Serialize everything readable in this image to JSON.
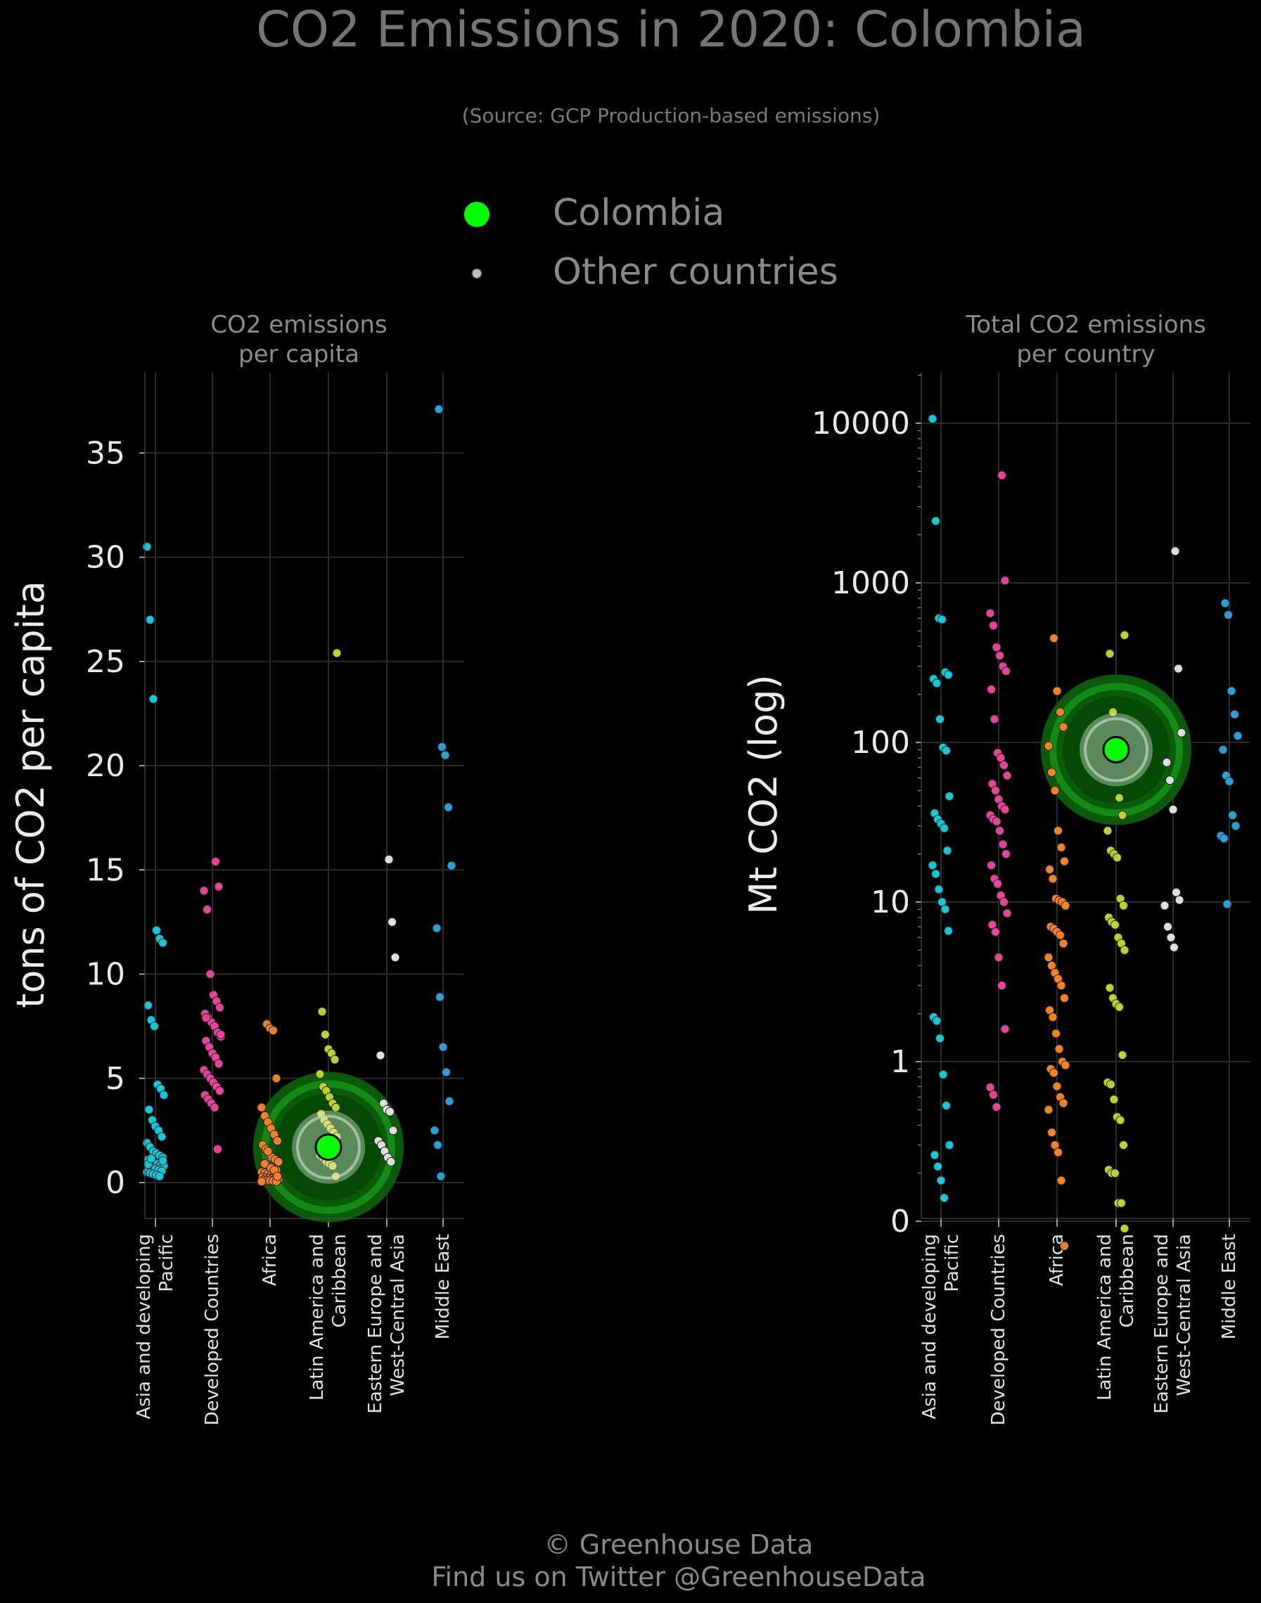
{
  "title": "CO2 Emissions in 2020: Colombia",
  "subtitle": "(Source: GCP Production-based emissions)",
  "legend": [
    {
      "label": "Colombia",
      "color": "#00ff00"
    },
    {
      "label": "Other countries",
      "color": "#bfbfbf"
    }
  ],
  "footer": {
    "line1": "© Greenhouse Data",
    "line2": "Find us on Twitter @GreenhouseData"
  },
  "colors": {
    "highlight": "#00ff00",
    "categories": [
      "#14c8d7",
      "#e8459a",
      "#f58223",
      "#bcd42a",
      "#dedede",
      "#2b9fd8"
    ]
  },
  "chart_data": [
    {
      "type": "scatter",
      "title": "CO2 emissions\nper capita",
      "ylabel": "tons of CO2 per capita",
      "scale": "linear",
      "ylim": [
        -1.6,
        38.6
      ],
      "yticks": [
        0,
        5,
        10,
        15,
        20,
        25,
        30,
        35
      ],
      "categories": [
        "Asia and developing\nPacific",
        "Developed Countries",
        "Africa",
        "Latin America and\nCaribbean",
        "Eastern Europe and\nWest-Central Asia",
        "Middle East"
      ],
      "highlight": {
        "label": "Colombia",
        "category": "Latin America and\nCaribbean",
        "value": 1.7
      },
      "series": [
        {
          "category": "Asia and developing\nPacific",
          "values": [
            30.5,
            27.0,
            23.2,
            12.1,
            11.7,
            11.5,
            8.5,
            7.8,
            7.5,
            4.7,
            4.5,
            4.2,
            3.5,
            3.0,
            2.7,
            2.5,
            2.2,
            1.9,
            1.7,
            1.5,
            1.4,
            1.3,
            1.2,
            1.1,
            1.0,
            0.95,
            0.9,
            0.85,
            0.8,
            0.75,
            0.7,
            0.65,
            0.6,
            0.55,
            0.5,
            0.45,
            0.4,
            0.35,
            0.3,
            1.05,
            0.88,
            1.15
          ]
        },
        {
          "category": "Developed Countries",
          "values": [
            15.4,
            14.2,
            14.0,
            13.1,
            10.0,
            9.0,
            8.7,
            8.4,
            8.1,
            7.9,
            7.7,
            7.5,
            7.2,
            7.0,
            6.8,
            6.5,
            6.2,
            6.0,
            5.7,
            5.4,
            5.2,
            5.0,
            4.8,
            4.6,
            4.4,
            4.2,
            4.0,
            3.8,
            3.6,
            1.6,
            7.1,
            7.9
          ]
        },
        {
          "category": "Africa",
          "values": [
            7.6,
            7.4,
            7.3,
            5.0,
            3.6,
            3.2,
            2.9,
            2.6,
            2.3,
            2.0,
            1.8,
            1.6,
            1.4,
            1.2,
            1.1,
            1.0,
            0.9,
            0.8,
            0.7,
            0.65,
            0.6,
            0.5,
            0.45,
            0.4,
            0.35,
            0.3,
            0.28,
            0.25,
            0.22,
            0.2,
            0.18,
            0.16,
            0.14,
            0.12,
            0.1,
            0.1,
            0.08,
            0.06,
            0.05,
            0.9,
            1.5,
            0.7,
            0.6,
            0.3
          ]
        },
        {
          "category": "Latin America and\nCaribbean",
          "values": [
            25.4,
            8.2,
            7.1,
            6.4,
            6.2,
            5.9,
            5.2,
            4.6,
            4.4,
            4.1,
            3.8,
            3.6,
            3.3,
            3.0,
            2.8,
            2.6,
            2.4,
            2.2,
            2.0,
            1.9,
            1.8,
            1.6,
            1.5,
            1.3,
            1.2,
            1.0,
            0.9,
            0.8,
            0.3,
            1.45
          ]
        },
        {
          "category": "Eastern Europe and\nWest-Central Asia",
          "values": [
            15.5,
            12.5,
            10.8,
            6.1,
            3.8,
            3.5,
            3.4,
            2.5,
            2.0,
            1.8,
            1.5,
            1.2,
            1.0
          ]
        },
        {
          "category": "Middle East",
          "values": [
            37.1,
            20.9,
            20.5,
            18.0,
            15.2,
            12.2,
            8.9,
            6.5,
            5.3,
            3.9,
            2.5,
            1.8,
            0.3
          ]
        }
      ]
    },
    {
      "type": "scatter",
      "title": "Total CO2 emissions\nper country",
      "ylabel": "Mt CO2 (log)",
      "scale": "log",
      "ylim": [
        0,
        20000
      ],
      "yticks": [
        "10000",
        "1000",
        "100",
        "10",
        "1",
        "0"
      ],
      "categories": [
        "Asia and developing\nPacific",
        "Developed Countries",
        "Africa",
        "Latin America and\nCaribbean",
        "Eastern Europe and\nWest-Central Asia",
        "Middle East"
      ],
      "highlight": {
        "label": "Colombia",
        "category": "Latin America and\nCaribbean",
        "value": 90
      },
      "series": [
        {
          "category": "Asia and developing\nPacific",
          "values": [
            10668,
            2442,
            600,
            590,
            275,
            265,
            250,
            235,
            140,
            93,
            89,
            46,
            36,
            33,
            31,
            29,
            21,
            17,
            15,
            12,
            10,
            9,
            6.6,
            1.9,
            1.8,
            1.4,
            0.83,
            0.53,
            0.3,
            0.26,
            0.22,
            0.18,
            0.14
          ]
        },
        {
          "category": "Developed Countries",
          "values": [
            4713,
            1034,
            645,
            540,
            395,
            350,
            300,
            280,
            215,
            140,
            86,
            80,
            72,
            62,
            55,
            50,
            44,
            40,
            38,
            35,
            33,
            32,
            28,
            23,
            20,
            17,
            14,
            13,
            11,
            10,
            8.5,
            7.2,
            6.5,
            4.5,
            3.0,
            1.6,
            0.69,
            0.62,
            0.52
          ]
        },
        {
          "category": "Africa",
          "values": [
            450,
            210,
            155,
            125,
            95,
            65,
            50,
            28,
            22,
            18,
            16,
            14,
            10.5,
            10.2,
            10,
            9.5,
            7,
            6.8,
            6.5,
            6.2,
            5.5,
            4.5,
            4,
            3.6,
            3.3,
            3,
            2.5,
            2.1,
            1.9,
            1.5,
            1.2,
            1.0,
            0.95,
            0.9,
            0.85,
            0.7,
            0.6,
            0.55,
            0.5,
            0.36,
            0.3,
            0.27,
            0.18,
            0.07
          ]
        },
        {
          "category": "Latin America and\nCaribbean",
          "values": [
            470,
            360,
            155,
            90,
            45,
            35,
            28,
            21,
            20,
            19,
            10.5,
            9.5,
            8,
            7.5,
            7.2,
            6,
            5.5,
            5,
            2.9,
            2.5,
            2.3,
            2.2,
            1.1,
            0.74,
            0.72,
            0.58,
            0.45,
            0.43,
            0.3,
            0.21,
            0.2,
            0.2,
            0.13,
            0.13,
            0.09
          ]
        },
        {
          "category": "Eastern Europe and\nWest-Central Asia",
          "values": [
            1580,
            290,
            115,
            75,
            58,
            38,
            11.5,
            10.3,
            9.5,
            7,
            6,
            5.2
          ]
        },
        {
          "category": "Middle East",
          "values": [
            745,
            630,
            210,
            150,
            110,
            90,
            62,
            57,
            35,
            30,
            26,
            25,
            9.7
          ]
        }
      ]
    }
  ]
}
